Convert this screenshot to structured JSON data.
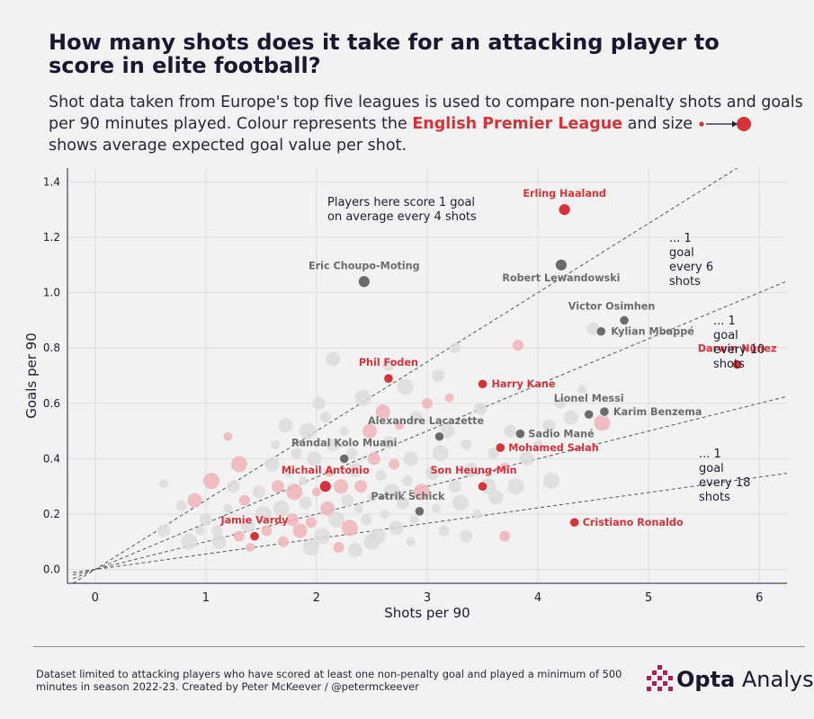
{
  "header": {
    "title": "How many shots does it take for an attacking player to score in elite football?",
    "subtitle_part1": "Shot data taken from Europe's top five leagues is used to compare non-penalty shots and goals per 90 minutes played. Colour represents the ",
    "subtitle_league": "English Premier League",
    "subtitle_part2": " and size ",
    "subtitle_part3": " shows average expected goal value per shot."
  },
  "colors": {
    "epl": "#d6323a",
    "other": "#6b6b6b",
    "faint_epl": "#eeb4b7",
    "faint_other": "#dcdada",
    "text": "#1f1a2e"
  },
  "chart_data": {
    "type": "scatter",
    "title": "How many shots does it take for an attacking player to score in elite football?",
    "xlabel": "Shots per 90",
    "ylabel": "Goals per 90",
    "xlim": [
      -0.25,
      6.25
    ],
    "ylim": [
      -0.05,
      1.45
    ],
    "x_ticks": [
      "0",
      "1",
      "2",
      "3",
      "4",
      "5",
      "6"
    ],
    "y_ticks": [
      "0.0",
      "0.2",
      "0.4",
      "0.6",
      "0.8",
      "1.0",
      "1.2",
      "1.4"
    ],
    "grid": true,
    "reference_lines": [
      {
        "slope": 0.25,
        "label": "Players here score 1 goal on average every 4 shots"
      },
      {
        "slope": 0.1667,
        "label": "... 1 goal every 6 shots"
      },
      {
        "slope": 0.1,
        "label": "... 1 goal every 10 shots"
      },
      {
        "slope": 0.0556,
        "label": "... 1 goal every 18 shots"
      }
    ],
    "labelled_players": [
      {
        "name": "Erling Haaland",
        "x": 4.24,
        "y": 1.3,
        "league": "EPL"
      },
      {
        "name": "Eric Choupo-Moting",
        "x": 2.43,
        "y": 1.04,
        "league": "Other"
      },
      {
        "name": "Robert Lewandowski",
        "x": 4.21,
        "y": 1.1,
        "league": "Other"
      },
      {
        "name": "Victor Osimhen",
        "x": 4.78,
        "y": 0.9,
        "league": "Other"
      },
      {
        "name": "Kylian Mbappé",
        "x": 4.57,
        "y": 0.86,
        "league": "Other"
      },
      {
        "name": "Darwin Núñez",
        "x": 5.8,
        "y": 0.74,
        "league": "EPL"
      },
      {
        "name": "Phil Foden",
        "x": 2.65,
        "y": 0.69,
        "league": "EPL"
      },
      {
        "name": "Harry Kane",
        "x": 3.5,
        "y": 0.67,
        "league": "EPL"
      },
      {
        "name": "Lionel Messi",
        "x": 4.46,
        "y": 0.56,
        "league": "Other"
      },
      {
        "name": "Karim Benzema",
        "x": 4.6,
        "y": 0.57,
        "league": "Other"
      },
      {
        "name": "Alexandre Lacazette",
        "x": 3.11,
        "y": 0.48,
        "league": "Other"
      },
      {
        "name": "Sadio Mané",
        "x": 3.84,
        "y": 0.49,
        "league": "Other"
      },
      {
        "name": "Mohamed Salah",
        "x": 3.66,
        "y": 0.44,
        "league": "EPL"
      },
      {
        "name": "Randal Kolo Muani",
        "x": 2.25,
        "y": 0.4,
        "league": "Other"
      },
      {
        "name": "Michail Antonio",
        "x": 2.08,
        "y": 0.3,
        "league": "EPL"
      },
      {
        "name": "Son Heung-Min",
        "x": 3.5,
        "y": 0.3,
        "league": "EPL"
      },
      {
        "name": "Patrik Schick",
        "x": 2.93,
        "y": 0.21,
        "league": "Other"
      },
      {
        "name": "Jamie Vardy",
        "x": 1.44,
        "y": 0.12,
        "league": "EPL"
      },
      {
        "name": "Cristiano Ronaldo",
        "x": 4.33,
        "y": 0.17,
        "league": "EPL"
      }
    ],
    "background_players": [
      [
        0.62,
        0.31,
        "O"
      ],
      [
        0.62,
        0.14,
        "O"
      ],
      [
        0.85,
        0.1,
        "O"
      ],
      [
        0.78,
        0.23,
        "O"
      ],
      [
        0.9,
        0.25,
        "E"
      ],
      [
        0.95,
        0.14,
        "O"
      ],
      [
        1.0,
        0.18,
        "O"
      ],
      [
        1.05,
        0.32,
        "E"
      ],
      [
        1.1,
        0.14,
        "O"
      ],
      [
        1.12,
        0.1,
        "O"
      ],
      [
        1.2,
        0.22,
        "O"
      ],
      [
        1.25,
        0.3,
        "O"
      ],
      [
        1.3,
        0.38,
        "E"
      ],
      [
        1.35,
        0.25,
        "E"
      ],
      [
        1.38,
        0.16,
        "O"
      ],
      [
        1.4,
        0.08,
        "E"
      ],
      [
        1.48,
        0.28,
        "O"
      ],
      [
        1.52,
        0.2,
        "O"
      ],
      [
        1.55,
        0.14,
        "E"
      ],
      [
        1.6,
        0.38,
        "O"
      ],
      [
        1.63,
        0.45,
        "O"
      ],
      [
        1.65,
        0.3,
        "E"
      ],
      [
        1.68,
        0.22,
        "O"
      ],
      [
        1.7,
        0.1,
        "E"
      ],
      [
        1.72,
        0.52,
        "O"
      ],
      [
        1.75,
        0.35,
        "O"
      ],
      [
        1.78,
        0.18,
        "E"
      ],
      [
        1.8,
        0.28,
        "E"
      ],
      [
        1.82,
        0.42,
        "O"
      ],
      [
        1.85,
        0.14,
        "E"
      ],
      [
        1.88,
        0.32,
        "O"
      ],
      [
        1.9,
        0.24,
        "O"
      ],
      [
        1.92,
        0.5,
        "O"
      ],
      [
        1.95,
        0.17,
        "E"
      ],
      [
        1.98,
        0.4,
        "O"
      ],
      [
        2.0,
        0.28,
        "E"
      ],
      [
        2.02,
        0.6,
        "O"
      ],
      [
        2.05,
        0.12,
        "O"
      ],
      [
        2.08,
        0.55,
        "O"
      ],
      [
        2.1,
        0.22,
        "E"
      ],
      [
        2.12,
        0.35,
        "E"
      ],
      [
        2.15,
        0.45,
        "O"
      ],
      [
        2.18,
        0.18,
        "O"
      ],
      [
        2.2,
        0.08,
        "E"
      ],
      [
        2.22,
        0.3,
        "E"
      ],
      [
        2.25,
        0.5,
        "O"
      ],
      [
        2.28,
        0.25,
        "O"
      ],
      [
        2.3,
        0.15,
        "E"
      ],
      [
        2.32,
        0.42,
        "O"
      ],
      [
        2.35,
        0.36,
        "O"
      ],
      [
        2.38,
        0.22,
        "O"
      ],
      [
        2.4,
        0.3,
        "E"
      ],
      [
        2.42,
        0.62,
        "O"
      ],
      [
        2.45,
        0.18,
        "O"
      ],
      [
        2.48,
        0.5,
        "E"
      ],
      [
        2.5,
        0.26,
        "O"
      ],
      [
        2.52,
        0.4,
        "E"
      ],
      [
        2.55,
        0.12,
        "O"
      ],
      [
        2.58,
        0.34,
        "O"
      ],
      [
        2.6,
        0.57,
        "E"
      ],
      [
        2.62,
        0.2,
        "O"
      ],
      [
        2.65,
        0.46,
        "O"
      ],
      [
        2.68,
        0.28,
        "O"
      ],
      [
        2.7,
        0.38,
        "E"
      ],
      [
        2.72,
        0.15,
        "O"
      ],
      [
        2.75,
        0.52,
        "E"
      ],
      [
        2.78,
        0.24,
        "O"
      ],
      [
        2.8,
        0.66,
        "O"
      ],
      [
        2.82,
        0.32,
        "O"
      ],
      [
        2.85,
        0.4,
        "O"
      ],
      [
        2.88,
        0.18,
        "O"
      ],
      [
        2.9,
        0.55,
        "O"
      ],
      [
        2.95,
        0.28,
        "E"
      ],
      [
        3.0,
        0.6,
        "E"
      ],
      [
        3.05,
        0.35,
        "O"
      ],
      [
        3.08,
        0.22,
        "O"
      ],
      [
        3.1,
        0.7,
        "O"
      ],
      [
        3.12,
        0.42,
        "O"
      ],
      [
        3.15,
        0.14,
        "O"
      ],
      [
        3.18,
        0.5,
        "O"
      ],
      [
        3.2,
        0.62,
        "E"
      ],
      [
        3.25,
        0.3,
        "O"
      ],
      [
        3.3,
        0.24,
        "O"
      ],
      [
        3.35,
        0.45,
        "O"
      ],
      [
        3.4,
        0.36,
        "O"
      ],
      [
        3.45,
        0.2,
        "O"
      ],
      [
        3.48,
        0.58,
        "O"
      ],
      [
        3.55,
        0.3,
        "O"
      ],
      [
        3.6,
        0.42,
        "O"
      ],
      [
        3.62,
        0.26,
        "O"
      ],
      [
        3.7,
        0.37,
        "E"
      ],
      [
        3.75,
        0.5,
        "O"
      ],
      [
        3.8,
        0.3,
        "O"
      ],
      [
        3.82,
        0.81,
        "E"
      ],
      [
        3.9,
        0.4,
        "O"
      ],
      [
        4.0,
        0.45,
        "O"
      ],
      [
        4.1,
        0.52,
        "O"
      ],
      [
        4.12,
        0.32,
        "O"
      ],
      [
        4.2,
        0.6,
        "O"
      ],
      [
        4.3,
        0.55,
        "O"
      ],
      [
        4.4,
        0.65,
        "O"
      ],
      [
        4.5,
        0.87,
        "O"
      ],
      [
        4.58,
        0.53,
        "E"
      ],
      [
        3.25,
        0.8,
        "O"
      ],
      [
        2.15,
        0.76,
        "O"
      ],
      [
        1.2,
        0.48,
        "E"
      ],
      [
        2.65,
        0.74,
        "O"
      ],
      [
        1.95,
        0.08,
        "O"
      ],
      [
        1.3,
        0.12,
        "E"
      ],
      [
        2.35,
        0.07,
        "O"
      ],
      [
        2.85,
        0.1,
        "O"
      ],
      [
        3.35,
        0.12,
        "O"
      ],
      [
        2.5,
        0.1,
        "O"
      ],
      [
        3.7,
        0.12,
        "E"
      ]
    ]
  },
  "footer": {
    "note": "Dataset limited to attacking players who have scored at least one non-penalty goal and played a minimum of 500 minutes in season 2022-23. Created by Peter McKeever / @petermckeever",
    "logo_bold": "Opta",
    "logo_rest": " Analyst"
  }
}
